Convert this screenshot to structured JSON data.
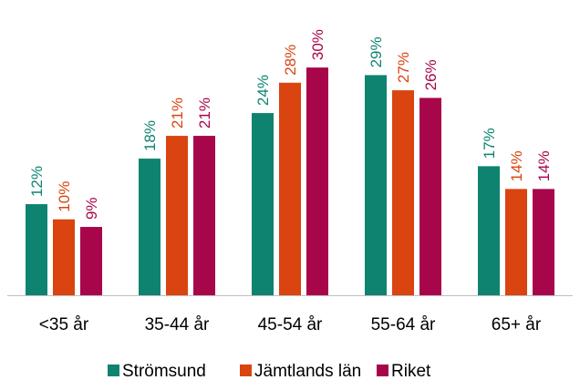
{
  "chart_data": {
    "type": "bar",
    "categories": [
      "<35 år",
      "35-44 år",
      "45-54 år",
      "55-64 år",
      "65+ år"
    ],
    "series": [
      {
        "name": "Strömsund",
        "color": "#0E8370",
        "values": [
          12,
          18,
          24,
          29,
          17
        ],
        "labels": [
          "12%",
          "18%",
          "24%",
          "29%",
          "17%"
        ]
      },
      {
        "name": "Jämtlands län",
        "color": "#D94410",
        "values": [
          10,
          21,
          28,
          27,
          14
        ],
        "labels": [
          "10%",
          "21%",
          "28%",
          "27%",
          "14%"
        ]
      },
      {
        "name": "Riket",
        "color": "#A8064A",
        "values": [
          9,
          21,
          30,
          26,
          14
        ],
        "labels": [
          "9%",
          "21%",
          "30%",
          "26%",
          "14%"
        ]
      }
    ],
    "title": "",
    "xlabel": "",
    "ylabel": "",
    "ylim": [
      0,
      34
    ],
    "grid": false,
    "legend": "bottom",
    "axis_color": "#BFBFBF"
  }
}
